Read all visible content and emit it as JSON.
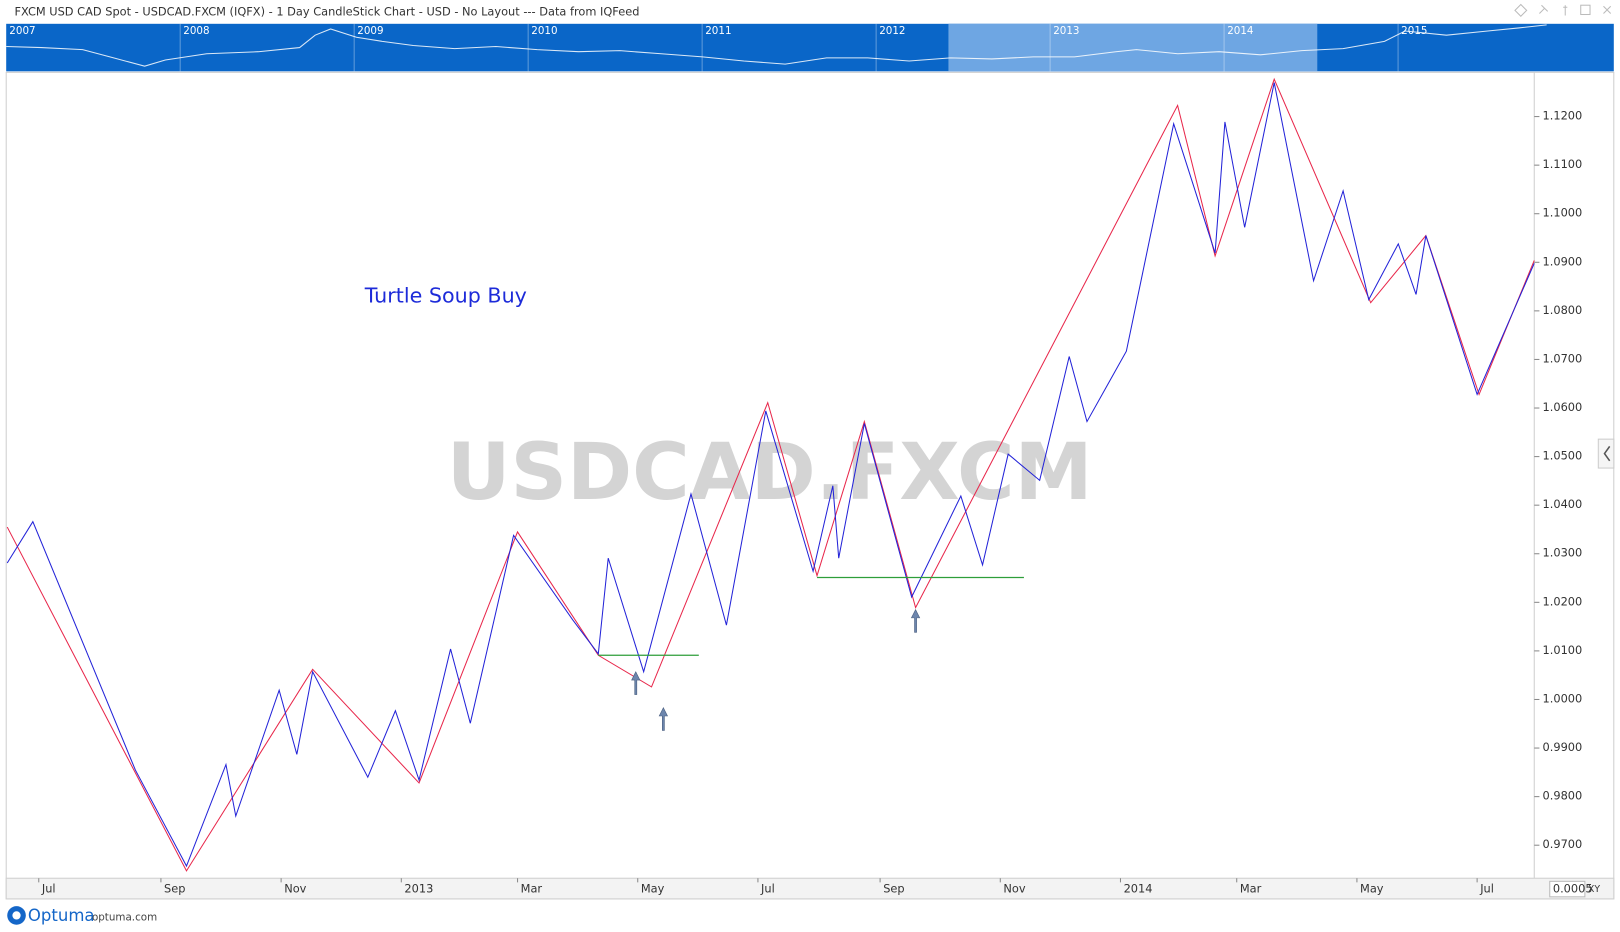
{
  "header": {
    "title": "FXCM USD CAD Spot - USDCAD.FXCM (IQFX) - 1 Day CandleStick Chart - USD - No Layout --- Data from IQFeed"
  },
  "navigator": {
    "years": [
      "2007",
      "2008",
      "2009",
      "2010",
      "2011",
      "2012",
      "2013",
      "2014",
      "2015"
    ]
  },
  "chart_data": {
    "type": "line",
    "watermark": "USDCAD.FXCM",
    "annotation": "Turtle Soup Buy",
    "xlim": [
      "2012-06-15",
      "2014-07-30"
    ],
    "xticks": [
      {
        "value": "2012-07-01",
        "label": "Jul"
      },
      {
        "value": "2012-09-01",
        "label": "Sep"
      },
      {
        "value": "2012-11-01",
        "label": "Nov"
      },
      {
        "value": "2013-01-01",
        "label": "2013"
      },
      {
        "value": "2013-03-01",
        "label": "Mar"
      },
      {
        "value": "2013-05-01",
        "label": "May"
      },
      {
        "value": "2013-07-01",
        "label": "Jul"
      },
      {
        "value": "2013-09-01",
        "label": "Sep"
      },
      {
        "value": "2013-11-01",
        "label": "Nov"
      },
      {
        "value": "2014-01-01",
        "label": "2014"
      },
      {
        "value": "2014-03-01",
        "label": "Mar"
      },
      {
        "value": "2014-05-01",
        "label": "May"
      },
      {
        "value": "2014-07-01",
        "label": "Jul"
      }
    ],
    "ylim": [
      0.9632,
      1.1291
    ],
    "yticks": [
      {
        "value": 0.97,
        "label": "0.9700"
      },
      {
        "value": 0.98,
        "label": "0.9800"
      },
      {
        "value": 0.99,
        "label": "0.9900"
      },
      {
        "value": 1.0,
        "label": "1.0000"
      },
      {
        "value": 1.01,
        "label": "1.0100"
      },
      {
        "value": 1.02,
        "label": "1.0200"
      },
      {
        "value": 1.03,
        "label": "1.0300"
      },
      {
        "value": 1.04,
        "label": "1.0400"
      },
      {
        "value": 1.05,
        "label": "1.0500"
      },
      {
        "value": 1.06,
        "label": "1.0600"
      },
      {
        "value": 1.07,
        "label": "1.0700"
      },
      {
        "value": 1.08,
        "label": "1.0800"
      },
      {
        "value": 1.09,
        "label": "1.0900"
      },
      {
        "value": 1.1,
        "label": "1.1000"
      },
      {
        "value": 1.11,
        "label": "1.1100"
      },
      {
        "value": 1.12,
        "label": "1.1200"
      }
    ],
    "series": [
      {
        "color": "#e8274b",
        "x": [
          "2012-06-15",
          "2012-09-14",
          "2012-11-17",
          "2013-01-10",
          "2013-03-01",
          "2013-04-11",
          "2013-05-08",
          "2013-07-06",
          "2013-07-31",
          "2013-08-24",
          "2013-09-19",
          "2014-01-30",
          "2014-02-18",
          "2014-03-20",
          "2014-05-08",
          "2014-06-05",
          "2014-07-02",
          "2014-07-30"
        ],
        "values": [
          1.0355,
          0.9647,
          1.0062,
          0.9828,
          1.0345,
          1.0091,
          1.0026,
          1.0611,
          1.0255,
          1.0572,
          1.0189,
          1.1223,
          1.0913,
          1.1277,
          1.0817,
          1.0955,
          1.0628,
          1.0904
        ]
      },
      {
        "color": "#2323d8",
        "x": [
          "2012-06-15",
          "2012-06-28",
          "2012-08-19",
          "2012-09-14",
          "2012-10-04",
          "2012-10-09",
          "2012-10-31",
          "2012-11-09",
          "2012-11-17",
          "2012-12-15",
          "2012-12-29",
          "2013-01-10",
          "2013-01-26",
          "2013-02-05",
          "2013-02-27",
          "2013-03-29",
          "2013-04-11",
          "2013-04-16",
          "2013-05-04",
          "2013-05-28",
          "2013-06-15",
          "2013-07-05",
          "2013-07-29",
          "2013-08-08",
          "2013-08-11",
          "2013-08-24",
          "2013-09-17",
          "2013-10-12",
          "2013-10-23",
          "2013-11-05",
          "2013-11-21",
          "2013-12-06",
          "2013-12-15",
          "2014-01-04",
          "2014-01-28",
          "2014-02-18",
          "2014-02-23",
          "2014-03-05",
          "2014-03-20",
          "2014-04-09",
          "2014-04-24",
          "2014-05-07",
          "2014-05-22",
          "2014-05-31",
          "2014-06-05",
          "2014-07-01",
          "2014-07-30"
        ],
        "values": [
          1.0281,
          1.0366,
          0.9855,
          0.9657,
          0.9866,
          0.976,
          1.0019,
          0.9887,
          1.0057,
          0.984,
          0.9977,
          0.9834,
          1.0104,
          0.9951,
          1.0338,
          1.0164,
          1.0094,
          1.0291,
          1.0057,
          1.0423,
          1.0153,
          1.0594,
          1.0264,
          1.044,
          1.0291,
          1.0568,
          1.0211,
          1.0419,
          1.0277,
          1.0505,
          1.0451,
          1.0706,
          1.0572,
          1.0717,
          1.1185,
          1.0919,
          1.1189,
          1.0972,
          1.127,
          1.0862,
          1.1047,
          1.0823,
          1.0938,
          1.0834,
          1.0955,
          1.0628,
          1.0898
        ]
      }
    ],
    "levels": [
      {
        "color": "#2e9e3a",
        "y": 1.0091,
        "x": [
          "2013-04-11",
          "2013-06-01"
        ]
      },
      {
        "color": "#2e9e3a",
        "y": 1.0251,
        "x": [
          "2013-07-31",
          "2013-11-13"
        ]
      }
    ],
    "arrows": [
      {
        "color": "#6d86ad",
        "x": "2013-04-30",
        "y": 1.0057
      },
      {
        "color": "#6d86ad",
        "x": "2013-05-14",
        "y": 0.9983
      },
      {
        "color": "#6d86ad",
        "x": "2013-09-19",
        "y": 1.0185
      }
    ]
  },
  "scale_box": {
    "step": 0.0005,
    "mode": "XY"
  },
  "footer": {
    "brand": "Optuma",
    "site": "optuma.com"
  }
}
